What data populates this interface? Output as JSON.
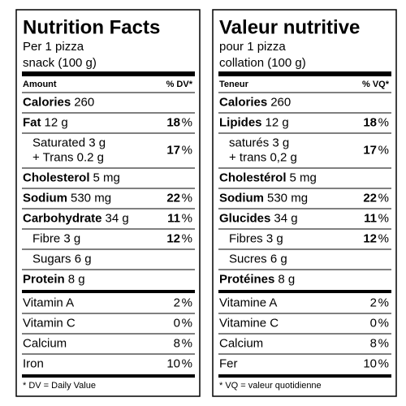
{
  "panels": [
    {
      "title": "Nutrition Facts",
      "serving": [
        "Per 1 pizza",
        "snack (100 g)"
      ],
      "header": {
        "amount": "Amount",
        "dv": "% DV*"
      },
      "nutrients": [
        {
          "name": "Calories",
          "amount": "260"
        },
        {
          "name": "Fat",
          "amount": "12 g",
          "dv": "18",
          "pct": "%",
          "sub": [
            {
              "lines": [
                "Saturated 3 g",
                "+ Trans 0.2 g"
              ],
              "dv": "17",
              "pct": "%"
            }
          ]
        },
        {
          "name": "Cholesterol",
          "amount": "5 mg"
        },
        {
          "name": "Sodium",
          "amount": "530 mg",
          "dv": "22",
          "pct": "%"
        },
        {
          "name": "Carbohydrate",
          "amount": "34 g",
          "dv": "11",
          "pct": "%",
          "sub": [
            {
              "lines": [
                "Fibre 3 g"
              ],
              "dv": "12",
              "pct": "%"
            },
            {
              "lines": [
                "Sugars 6 g"
              ]
            }
          ]
        },
        {
          "name": "Protein",
          "amount": "8 g"
        }
      ],
      "vitamins": [
        {
          "name": "Vitamin A",
          "dv": "2",
          "pct": "%"
        },
        {
          "name": "Vitamin C",
          "dv": "0",
          "pct": "%"
        },
        {
          "name": "Calcium",
          "dv": "8",
          "pct": "%"
        },
        {
          "name": "Iron",
          "dv": "10",
          "pct": "%"
        }
      ],
      "footnote": "* DV = Daily Value"
    },
    {
      "title": "Valeur nutritive",
      "serving": [
        "pour 1 pizza",
        "collation (100 g)"
      ],
      "header": {
        "amount": "Teneur",
        "dv": "% VQ*"
      },
      "nutrients": [
        {
          "name": "Calories",
          "amount": "260"
        },
        {
          "name": "Lipides",
          "amount": "12 g",
          "dv": "18",
          "pct": "%",
          "sub": [
            {
              "lines": [
                "saturés 3 g",
                "+ trans 0,2 g"
              ],
              "dv": "17",
              "pct": "%"
            }
          ]
        },
        {
          "name": "Cholestérol",
          "amount": "5 mg"
        },
        {
          "name": "Sodium",
          "amount": "530 mg",
          "dv": "22",
          "pct": "%"
        },
        {
          "name": "Glucides",
          "amount": "34 g",
          "dv": "11",
          "pct": "%",
          "sub": [
            {
              "lines": [
                "Fibres 3 g"
              ],
              "dv": "12",
              "pct": "%"
            },
            {
              "lines": [
                "Sucres 6 g"
              ]
            }
          ]
        },
        {
          "name": "Protéines",
          "amount": "8 g"
        }
      ],
      "vitamins": [
        {
          "name": "Vitamine A",
          "dv": "2",
          "pct": "%"
        },
        {
          "name": "Vitamine C",
          "dv": "0",
          "pct": "%"
        },
        {
          "name": "Calcium",
          "dv": "8",
          "pct": "%"
        },
        {
          "name": "Fer",
          "dv": "10",
          "pct": "%"
        }
      ],
      "footnote": "* VQ = valeur quotidienne"
    }
  ]
}
